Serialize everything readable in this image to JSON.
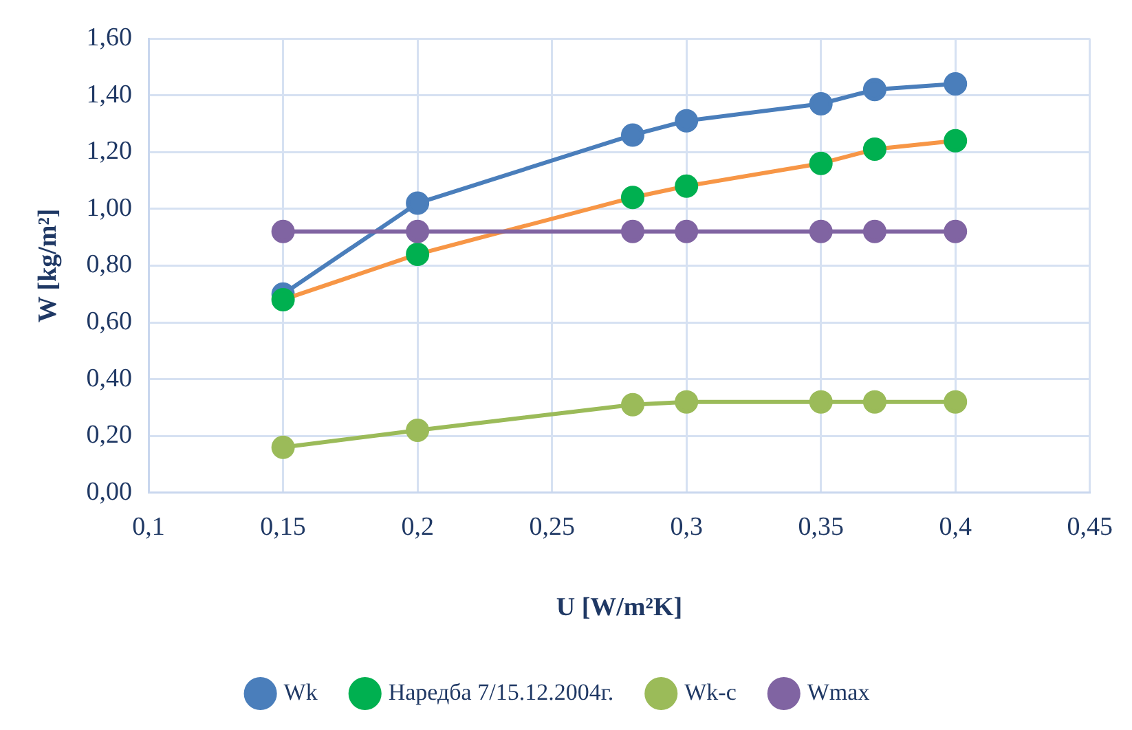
{
  "chart_data": {
    "type": "line",
    "xlabel": "U [W/m²K]",
    "ylabel": "W [kg/m²]",
    "x": [
      0.15,
      0.2,
      0.28,
      0.3,
      0.35,
      0.37,
      0.4
    ],
    "series": [
      {
        "name": "Wk",
        "color": "#4a7ebb",
        "values": [
          0.7,
          1.02,
          1.26,
          1.31,
          1.37,
          1.42,
          1.44
        ]
      },
      {
        "name": "Наредба 7/15.12.2004г.",
        "color": "#f79646",
        "colors": [
          "#00b050",
          "#00b050",
          "#00b050",
          "#00b050",
          "#00b050",
          "#00b050",
          "#00b050"
        ],
        "values": [
          0.68,
          0.84,
          1.04,
          1.08,
          1.16,
          1.21,
          1.24
        ]
      },
      {
        "name": "Wk-c",
        "color": "#9bbb59",
        "values": [
          0.16,
          0.22,
          0.31,
          0.32,
          0.32,
          0.32,
          0.32
        ]
      },
      {
        "name": "Wmax",
        "color": "#8064a2",
        "values": [
          0.92,
          0.92,
          0.92,
          0.92,
          0.92,
          0.92,
          0.92
        ]
      }
    ],
    "xlim": [
      0.1,
      0.45
    ],
    "xticks": [
      {
        "value": 0.1,
        "label": "0,1"
      },
      {
        "value": 0.15,
        "label": "0,15"
      },
      {
        "value": 0.2,
        "label": "0,2"
      },
      {
        "value": 0.25,
        "label": "0,25"
      },
      {
        "value": 0.3,
        "label": "0,3"
      },
      {
        "value": 0.35,
        "label": "0,35"
      },
      {
        "value": 0.4,
        "label": "0,4"
      },
      {
        "value": 0.45,
        "label": "0,45"
      }
    ],
    "ylim": [
      0,
      1.6
    ],
    "yticks": [
      {
        "value": 0,
        "label": "0,00"
      },
      {
        "value": 0.2,
        "label": "0,20"
      },
      {
        "value": 0.4,
        "label": "0,40"
      },
      {
        "value": 0.6,
        "label": "0,60"
      },
      {
        "value": 0.8,
        "label": "0,80"
      },
      {
        "value": 1.0,
        "label": "1,00"
      },
      {
        "value": 1.2,
        "label": "1,20"
      },
      {
        "value": 1.4,
        "label": "1,40"
      },
      {
        "value": 1.6,
        "label": "1,60"
      }
    ],
    "grid": true,
    "legend": "bottom",
    "marker": "circle",
    "line_style": "solid"
  }
}
